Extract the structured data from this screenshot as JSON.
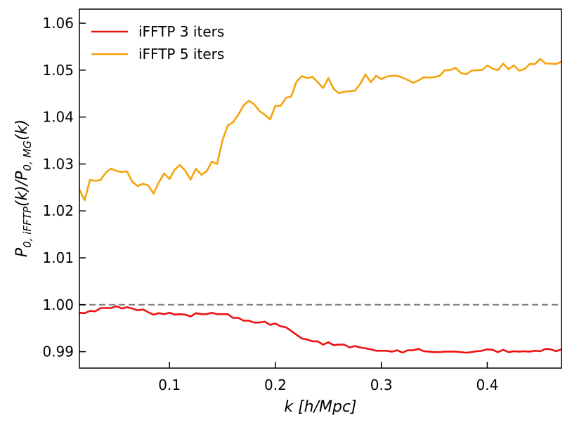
{
  "chart_data": {
    "type": "line",
    "xlabel_parts": {
      "var": "k",
      "unit": "[h/Mpc]"
    },
    "ylabel_parts": {
      "p": "P",
      "sub_num": "0, iFFTP",
      "arg": "(k)",
      "slash": "/",
      "sub_den": "0, MG"
    },
    "xlim": [
      0.015,
      0.47
    ],
    "ylim": [
      0.9865,
      1.063
    ],
    "x_ticks": [
      0.1,
      0.2,
      0.3,
      0.4
    ],
    "x_tick_labels": [
      "0.1",
      "0.2",
      "0.3",
      "0.4"
    ],
    "y_ticks": [
      0.99,
      1.0,
      1.01,
      1.02,
      1.03,
      1.04,
      1.05,
      1.06
    ],
    "y_tick_labels": [
      "0.99",
      "1.00",
      "1.01",
      "1.02",
      "1.03",
      "1.04",
      "1.05",
      "1.06"
    ],
    "grid": false,
    "legend_position": "top-left",
    "reference_line": {
      "y": 1.0,
      "style": "dashed",
      "color": "#808080"
    },
    "series": [
      {
        "name": "iFFTP 3 iters",
        "color": "#ee1111",
        "x": [
          0.015,
          0.02,
          0.025,
          0.03,
          0.035,
          0.04,
          0.045,
          0.05,
          0.055,
          0.06,
          0.065,
          0.07,
          0.075,
          0.08,
          0.085,
          0.09,
          0.095,
          0.1,
          0.105,
          0.11,
          0.115,
          0.12,
          0.125,
          0.13,
          0.135,
          0.14,
          0.145,
          0.15,
          0.155,
          0.16,
          0.165,
          0.17,
          0.175,
          0.18,
          0.185,
          0.19,
          0.195,
          0.2,
          0.205,
          0.21,
          0.215,
          0.22,
          0.225,
          0.23,
          0.235,
          0.24,
          0.245,
          0.25,
          0.255,
          0.26,
          0.265,
          0.27,
          0.275,
          0.28,
          0.285,
          0.29,
          0.295,
          0.3,
          0.305,
          0.31,
          0.315,
          0.32,
          0.325,
          0.33,
          0.335,
          0.34,
          0.345,
          0.35,
          0.355,
          0.36,
          0.365,
          0.37,
          0.375,
          0.38,
          0.385,
          0.39,
          0.395,
          0.4,
          0.405,
          0.41,
          0.415,
          0.42,
          0.425,
          0.43,
          0.435,
          0.44,
          0.445,
          0.45,
          0.455,
          0.46,
          0.465,
          0.47
        ],
        "y": [
          0.9983,
          0.9982,
          0.9987,
          0.9986,
          0.9993,
          0.9993,
          0.9993,
          0.9997,
          0.9992,
          0.9995,
          0.9992,
          0.9988,
          0.999,
          0.9984,
          0.9979,
          0.9982,
          0.998,
          0.9983,
          0.9979,
          0.998,
          0.9979,
          0.9975,
          0.9982,
          0.998,
          0.998,
          0.9983,
          0.998,
          0.998,
          0.998,
          0.9972,
          0.9972,
          0.9966,
          0.9966,
          0.9962,
          0.9962,
          0.9964,
          0.9957,
          0.996,
          0.9954,
          0.9952,
          0.9944,
          0.9936,
          0.9928,
          0.9926,
          0.9922,
          0.9922,
          0.9915,
          0.992,
          0.9914,
          0.9915,
          0.9915,
          0.9909,
          0.9912,
          0.9909,
          0.9907,
          0.9905,
          0.9902,
          0.9902,
          0.9902,
          0.99,
          0.9903,
          0.9898,
          0.9903,
          0.9903,
          0.9906,
          0.9901,
          0.99,
          0.9899,
          0.9899,
          0.99,
          0.99,
          0.99,
          0.9899,
          0.9898,
          0.9899,
          0.9901,
          0.9902,
          0.9905,
          0.9904,
          0.9899,
          0.9904,
          0.9899,
          0.9901,
          0.99,
          0.9901,
          0.99,
          0.9902,
          0.9901,
          0.9906,
          0.9905,
          0.9901,
          0.9905
        ]
      },
      {
        "name": "iFFTP 5 iters",
        "color": "#f5a30a",
        "x": [
          0.015,
          0.02,
          0.025,
          0.03,
          0.035,
          0.04,
          0.045,
          0.05,
          0.055,
          0.06,
          0.065,
          0.07,
          0.075,
          0.08,
          0.085,
          0.09,
          0.095,
          0.1,
          0.105,
          0.11,
          0.115,
          0.12,
          0.125,
          0.13,
          0.135,
          0.14,
          0.145,
          0.15,
          0.155,
          0.16,
          0.165,
          0.17,
          0.175,
          0.18,
          0.185,
          0.19,
          0.195,
          0.2,
          0.205,
          0.21,
          0.215,
          0.22,
          0.225,
          0.23,
          0.235,
          0.24,
          0.245,
          0.25,
          0.255,
          0.26,
          0.265,
          0.27,
          0.275,
          0.28,
          0.285,
          0.29,
          0.295,
          0.3,
          0.305,
          0.31,
          0.315,
          0.32,
          0.325,
          0.33,
          0.335,
          0.34,
          0.345,
          0.35,
          0.355,
          0.36,
          0.365,
          0.37,
          0.375,
          0.38,
          0.385,
          0.39,
          0.395,
          0.4,
          0.405,
          0.41,
          0.415,
          0.42,
          0.425,
          0.43,
          0.435,
          0.44,
          0.445,
          0.45,
          0.455,
          0.46,
          0.465,
          0.47
        ],
        "y": [
          1.0245,
          1.0223,
          1.0266,
          1.0264,
          1.0266,
          1.0282,
          1.029,
          1.0285,
          1.0283,
          1.0284,
          1.0262,
          1.0253,
          1.0258,
          1.0254,
          1.0237,
          1.0261,
          1.028,
          1.0268,
          1.0288,
          1.0298,
          1.0285,
          1.0267,
          1.029,
          1.0277,
          1.0284,
          1.0305,
          1.03,
          1.035,
          1.0382,
          1.0389,
          1.0405,
          1.0425,
          1.0435,
          1.0427,
          1.0413,
          1.0405,
          1.0395,
          1.0424,
          1.0424,
          1.0441,
          1.0444,
          1.0476,
          1.0487,
          1.0483,
          1.0486,
          1.0474,
          1.0462,
          1.0483,
          1.046,
          1.0451,
          1.0454,
          1.0455,
          1.0456,
          1.047,
          1.0491,
          1.0474,
          1.0488,
          1.0481,
          1.0486,
          1.0488,
          1.0488,
          1.0484,
          1.0479,
          1.0473,
          1.0478,
          1.0485,
          1.0484,
          1.0485,
          1.0488,
          1.05,
          1.05,
          1.0505,
          1.0494,
          1.0491,
          1.0499,
          1.05,
          1.05,
          1.051,
          1.0503,
          1.05,
          1.0514,
          1.0502,
          1.051,
          1.0499,
          1.0502,
          1.0513,
          1.0513,
          1.0524,
          1.0514,
          1.0514,
          1.0513,
          1.0518
        ]
      }
    ]
  }
}
